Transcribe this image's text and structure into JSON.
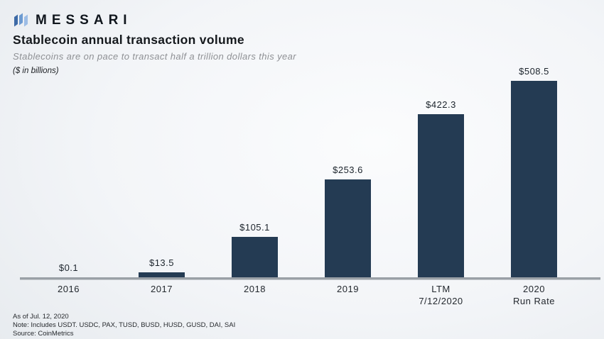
{
  "logo": {
    "brand": "MESSARI"
  },
  "header": {
    "title": "Stablecoin annual transaction volume",
    "subtitle": "Stablecoins are on pace to transact half a trillion dollars this year",
    "units": "($ in billions)"
  },
  "chart_data": {
    "type": "bar",
    "title": "Stablecoin annual transaction volume",
    "subtitle": "Stablecoins are on pace to transact half a trillion dollars this year",
    "xlabel": "",
    "ylabel": "($ in billions)",
    "categories": [
      "2016",
      "2017",
      "2018",
      "2019",
      "LTM\n7/12/2020",
      "2020\nRun Rate"
    ],
    "values": [
      0.1,
      13.5,
      105.1,
      253.6,
      422.3,
      508.5
    ],
    "value_labels": [
      "$0.1",
      "$13.5",
      "$105.1",
      "$253.6",
      "$422.3",
      "$508.5"
    ],
    "ylim": [
      0,
      508.5
    ],
    "grid": false,
    "legend": false,
    "bar_color": "#243b53",
    "axis_color": "#9aa0a6"
  },
  "footer": {
    "as_of": "As of Jul. 12, 2020",
    "note": "Note: Includes USDT. USDC, PAX, TUSD, BUSD, HUSD, GUSD, DAI, SAI",
    "source": "Source: CoinMetrics"
  },
  "colors": {
    "bar": "#243b53",
    "axis": "#9aa0a6",
    "logo_blue_dark": "#3d6aa6",
    "logo_blue_mid": "#6d9bd1",
    "logo_blue_light": "#9dbde5",
    "background_edge": "#d5dade",
    "background_center": "#fbfcfd"
  }
}
